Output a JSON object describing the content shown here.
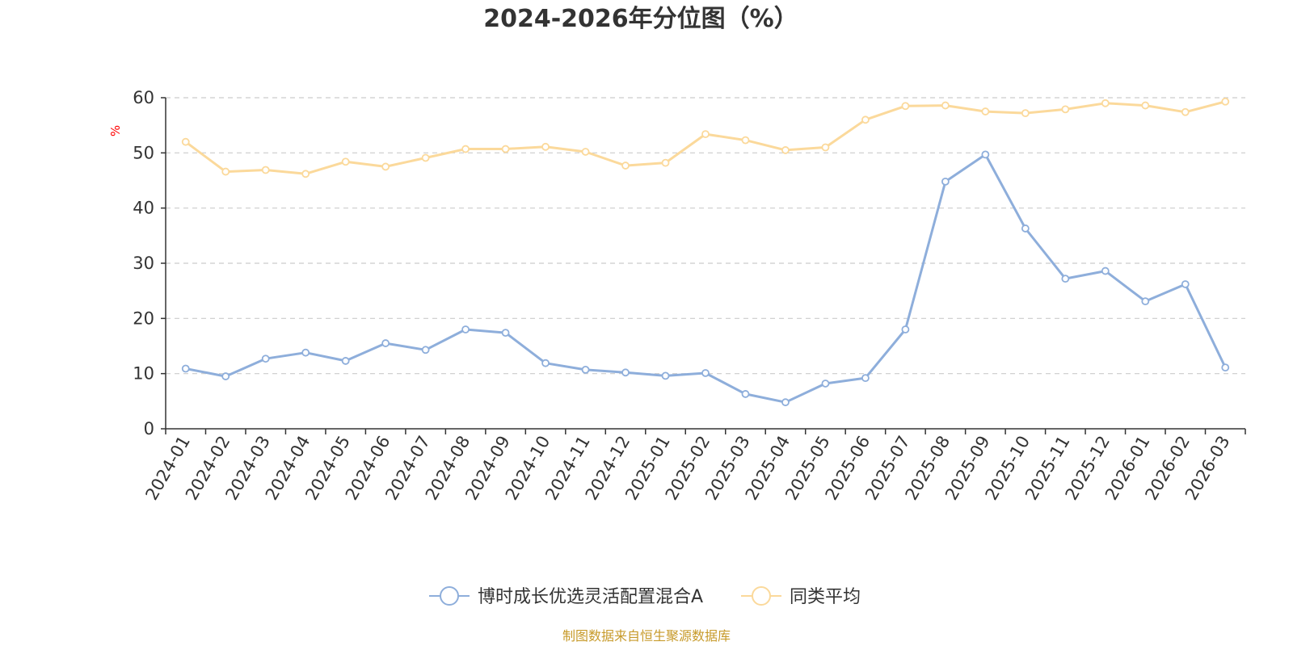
{
  "chart_data": {
    "type": "line",
    "title": "2024-2026年分位图（%）",
    "ylabel": "%",
    "xlabel": "",
    "ylim": [
      0,
      60
    ],
    "yticks": [
      0,
      10,
      20,
      30,
      40,
      50,
      60
    ],
    "grid": true,
    "legend_position": "bottom-center",
    "categories": [
      "2024-01",
      "2024-02",
      "2024-03",
      "2024-04",
      "2024-05",
      "2024-06",
      "2024-07",
      "2024-08",
      "2024-09",
      "2024-10",
      "2024-11",
      "2024-12",
      "2025-01",
      "2025-02",
      "2025-03",
      "2025-04",
      "2025-05",
      "2025-06",
      "2025-07",
      "2025-08",
      "2025-09",
      "2025-10",
      "2025-11",
      "2025-12",
      "2026-01",
      "2026-02",
      "2026-03"
    ],
    "series": [
      {
        "name": "博时成长优选灵活配置混合A",
        "color": "#8eaedb",
        "values": [
          10.9,
          9.5,
          12.7,
          13.8,
          12.3,
          15.5,
          14.3,
          18.0,
          17.4,
          11.9,
          10.7,
          10.2,
          9.6,
          10.1,
          6.3,
          4.8,
          8.2,
          9.2,
          18.0,
          44.8,
          49.7,
          36.3,
          27.2,
          28.6,
          23.1,
          26.2,
          11.1
        ]
      },
      {
        "name": "同类平均",
        "color": "#fbd99b",
        "values": [
          52.0,
          46.6,
          46.9,
          46.2,
          48.4,
          47.5,
          49.1,
          50.7,
          50.7,
          51.1,
          50.2,
          47.7,
          48.2,
          53.4,
          52.3,
          50.5,
          51.0,
          56.0,
          58.5,
          58.6,
          57.5,
          57.2,
          57.9,
          59.0,
          58.6,
          57.4,
          59.3
        ]
      }
    ]
  },
  "footer": {
    "source": "制图数据来自恒生聚源数据库"
  }
}
